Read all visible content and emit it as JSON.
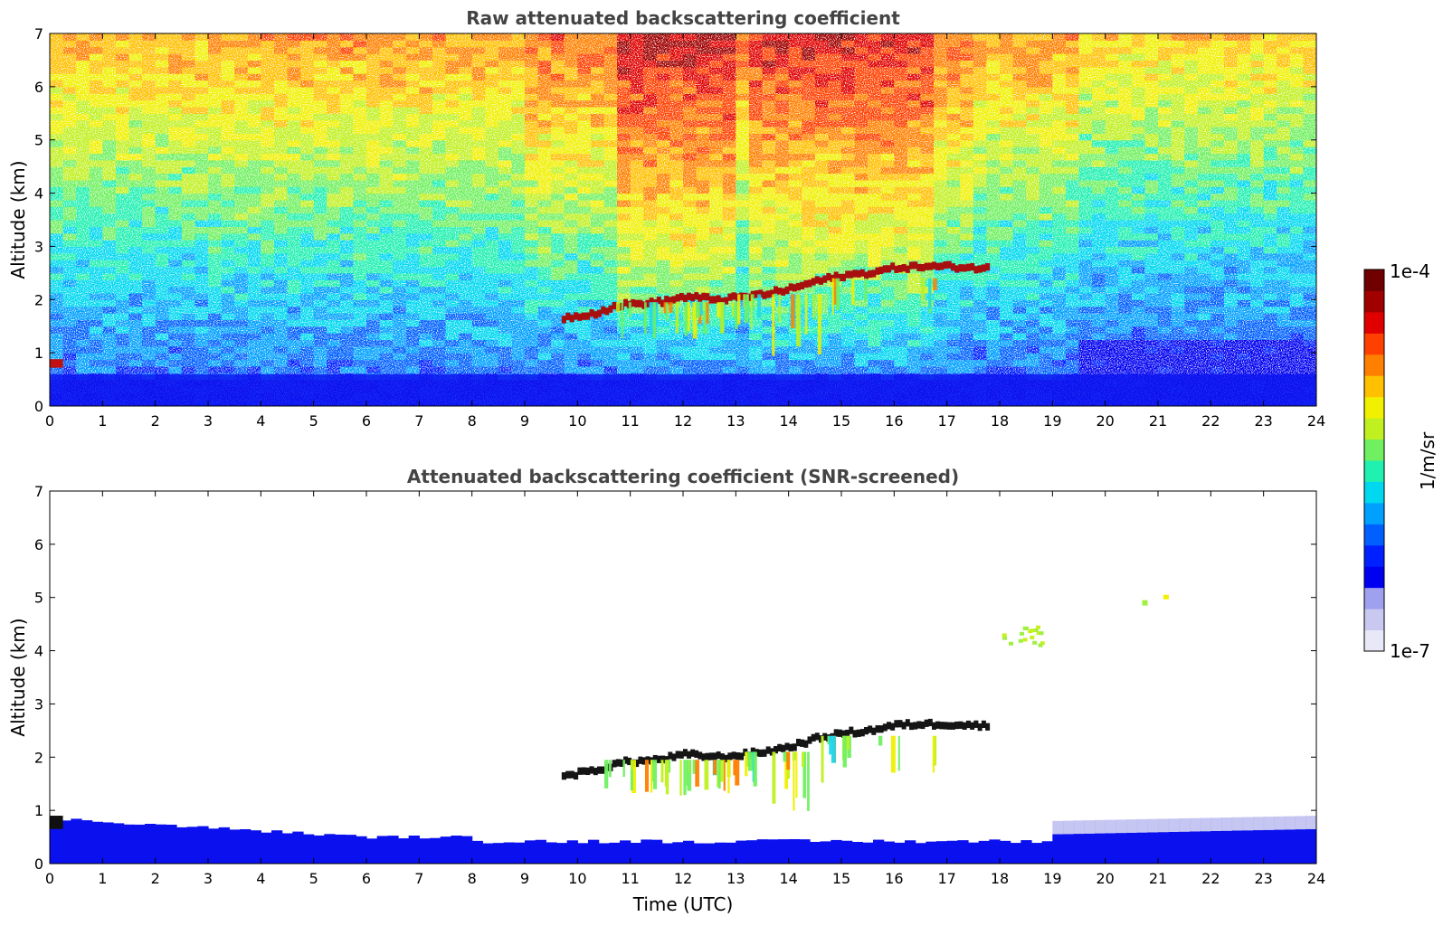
{
  "chart_data": [
    {
      "type": "heatmap",
      "title": "Raw attenuated backscattering coefficient",
      "xlabel": "",
      "ylabel": "Altitude (km)",
      "xlim": [
        0,
        24
      ],
      "ylim": [
        0,
        7
      ],
      "x_ticks": [
        0,
        1,
        2,
        3,
        4,
        5,
        6,
        7,
        8,
        9,
        10,
        11,
        12,
        13,
        14,
        15,
        16,
        17,
        18,
        19,
        20,
        21,
        22,
        23,
        24
      ],
      "y_ticks": [
        0,
        1,
        2,
        3,
        4,
        5,
        6,
        7
      ],
      "features": {
        "aerosol_layer_top_km": 0.6,
        "cloud_layer": [
          {
            "time": 9.7,
            "alt": 1.65
          },
          {
            "time": 10.3,
            "alt": 1.75
          },
          {
            "time": 10.8,
            "alt": 1.9
          },
          {
            "time": 11.5,
            "alt": 1.95
          },
          {
            "time": 12.0,
            "alt": 2.05
          },
          {
            "time": 12.7,
            "alt": 2.0
          },
          {
            "time": 13.5,
            "alt": 2.1
          },
          {
            "time": 14.0,
            "alt": 2.2
          },
          {
            "time": 14.5,
            "alt": 2.35
          },
          {
            "time": 15.0,
            "alt": 2.45
          },
          {
            "time": 15.5,
            "alt": 2.5
          },
          {
            "time": 16.0,
            "alt": 2.6
          },
          {
            "time": 16.5,
            "alt": 2.62
          },
          {
            "time": 17.0,
            "alt": 2.62
          },
          {
            "time": 17.8,
            "alt": 2.58
          }
        ]
      }
    },
    {
      "type": "heatmap",
      "title": "Attenuated backscattering coefficient (SNR-screened)",
      "xlabel": "Time (UTC)",
      "ylabel": "Altitude (km)",
      "xlim": [
        0,
        24
      ],
      "ylim": [
        0,
        7
      ],
      "x_ticks": [
        0,
        1,
        2,
        3,
        4,
        5,
        6,
        7,
        8,
        9,
        10,
        11,
        12,
        13,
        14,
        15,
        16,
        17,
        18,
        19,
        20,
        21,
        22,
        23,
        24
      ],
      "y_ticks": [
        0,
        1,
        2,
        3,
        4,
        5,
        6,
        7
      ],
      "features": {
        "aerosol_layer_top_km": 0.8,
        "elevated_layer_times": [
          18.0,
          18.8
        ],
        "elevated_layer_alt_km": 4.3
      }
    }
  ],
  "colorbar": {
    "label": "1/m/sr",
    "max_label": "1e-4",
    "min_label": "1e-7",
    "scale": "log",
    "range": [
      1e-07,
      0.0001
    ],
    "colors": [
      "#e8e8f8",
      "#c8c8f0",
      "#a0a0f0",
      "#0000f0",
      "#0020ff",
      "#0060ff",
      "#00a0ff",
      "#00d8f0",
      "#20f0b0",
      "#70f060",
      "#c0f020",
      "#f0f000",
      "#ffc000",
      "#ff8000",
      "#ff4000",
      "#e00000",
      "#a00000",
      "#700000"
    ]
  }
}
